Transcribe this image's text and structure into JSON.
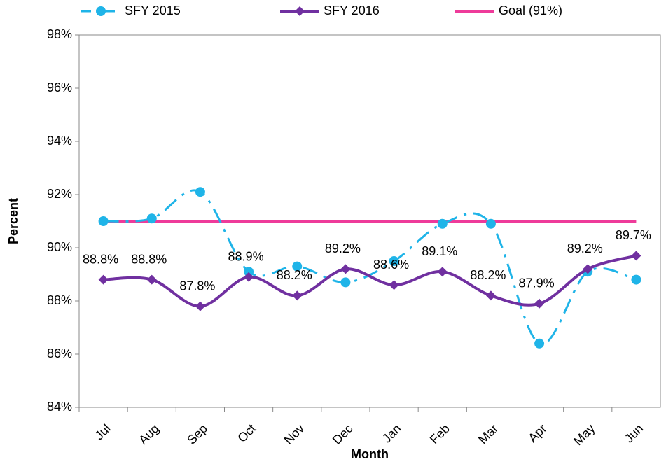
{
  "chart_data": {
    "type": "line",
    "x_label": "Month",
    "y_label": "Percent",
    "categories": [
      "Jul",
      "Aug",
      "Sep",
      "Oct",
      "Nov",
      "Dec",
      "Jan",
      "Feb",
      "Mar",
      "Apr",
      "May",
      "Jun"
    ],
    "series": [
      {
        "name": "SFY 2015",
        "color": "#1fb4e8",
        "marker": "circle",
        "dashed": true,
        "values": [
          91.0,
          91.1,
          92.1,
          89.1,
          89.3,
          88.7,
          89.5,
          90.9,
          90.9,
          86.4,
          89.1,
          88.8
        ]
      },
      {
        "name": "SFY 2016",
        "color": "#7030a0",
        "marker": "diamond",
        "dashed": false,
        "values": [
          88.8,
          88.8,
          87.8,
          88.9,
          88.2,
          89.2,
          88.6,
          89.1,
          88.2,
          87.9,
          89.2,
          89.7
        ],
        "value_labels": [
          "88.8%",
          "88.8%",
          "87.8%",
          "88.9%",
          "88.2%",
          "89.2%",
          "88.6%",
          "89.1%",
          "88.2%",
          "87.9%",
          "89.2%",
          "89.7%"
        ]
      },
      {
        "name": "Goal (91%)",
        "color": "#ee3b9a",
        "marker": "none",
        "dashed": false,
        "values": [
          91,
          91,
          91,
          91,
          91,
          91,
          91,
          91,
          91,
          91,
          91,
          91
        ]
      }
    ],
    "ylim": [
      84,
      98
    ],
    "yticks": [
      {
        "value": 84,
        "label": "84%"
      },
      {
        "value": 86,
        "label": "86%"
      },
      {
        "value": 88,
        "label": "88%"
      },
      {
        "value": 90,
        "label": "90%"
      },
      {
        "value": 92,
        "label": "92%"
      },
      {
        "value": 94,
        "label": "94%"
      },
      {
        "value": 96,
        "label": "96%"
      },
      {
        "value": 98,
        "label": "98%"
      }
    ],
    "grid": false
  }
}
